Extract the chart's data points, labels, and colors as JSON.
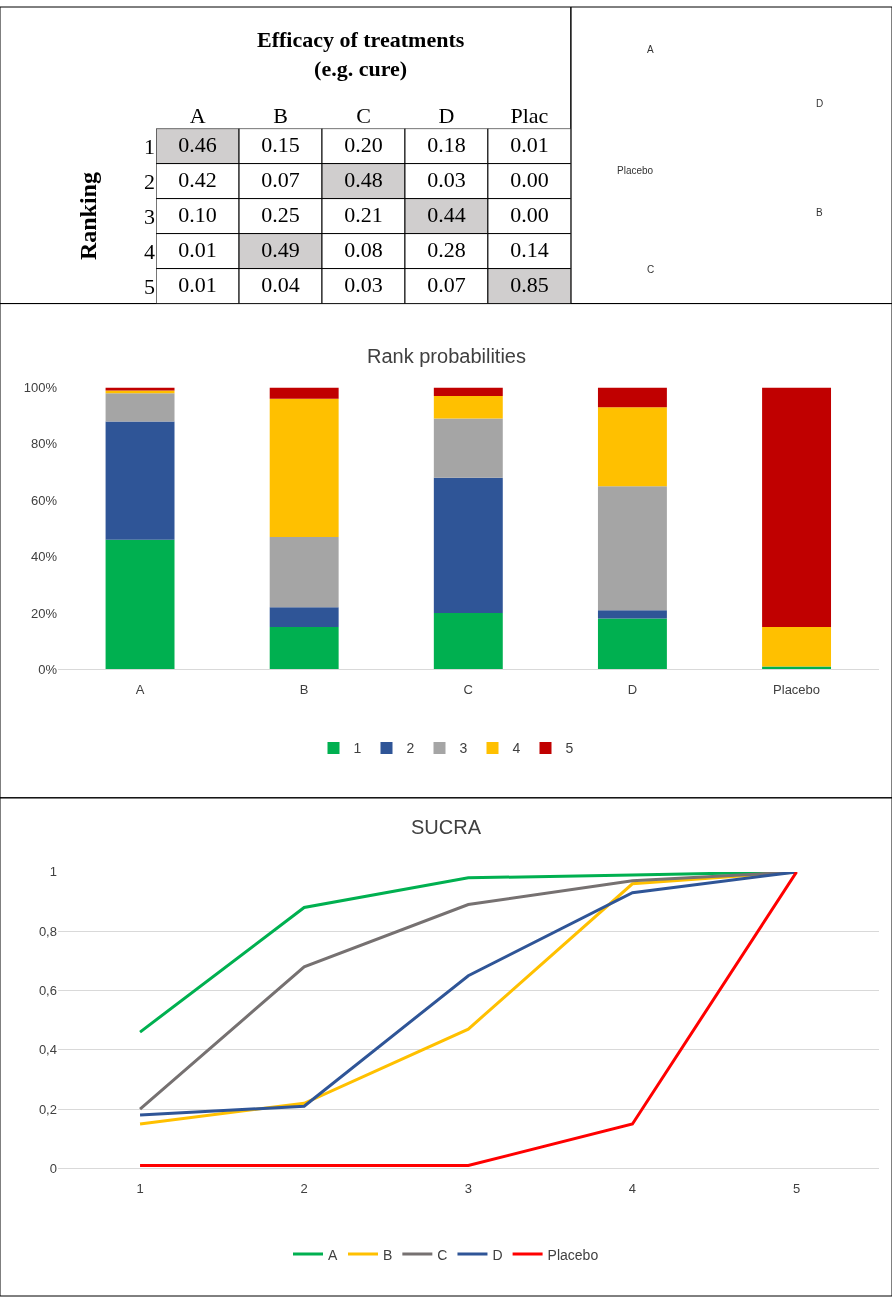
{
  "chart_data": [
    {
      "type": "heatmap",
      "title": "Efficacy of treatments (e.g. cure)",
      "ylabel": "Ranking",
      "categories": [
        "A",
        "B",
        "C",
        "D",
        "Plac"
      ],
      "y_categories": [
        "1",
        "2",
        "3",
        "4",
        "5"
      ],
      "cells": [
        [
          0.46,
          0.15,
          0.2,
          0.18,
          0.01
        ],
        [
          0.42,
          0.07,
          0.48,
          0.03,
          0.0
        ],
        [
          0.1,
          0.25,
          0.21,
          0.44,
          0.0
        ],
        [
          0.01,
          0.49,
          0.08,
          0.28,
          0.14
        ],
        [
          0.01,
          0.04,
          0.03,
          0.07,
          0.85
        ]
      ],
      "cell_labels": [
        [
          "0.46",
          "0.15",
          "0.20",
          "0.18",
          "0.01"
        ],
        [
          "0.42",
          "0.07",
          "0.48",
          "0.03",
          "0.00"
        ],
        [
          "0.10",
          "0.25",
          "0.21",
          "0.44",
          "0.00"
        ],
        [
          "0.01",
          "0.49",
          "0.08",
          "0.28",
          "0.14"
        ],
        [
          "0.01",
          "0.04",
          "0.03",
          "0.07",
          "0.85"
        ]
      ]
    },
    {
      "type": "other",
      "annotations": [
        "A",
        "D",
        "Placebo",
        "B",
        "C"
      ]
    },
    {
      "type": "bar",
      "stacked": true,
      "title": "Rank probabilities",
      "categories": [
        "A",
        "B",
        "C",
        "D",
        "Placebo"
      ],
      "ylim": [
        0,
        100
      ],
      "yticks": [
        {
          "value": 0,
          "label": "0%"
        },
        {
          "value": 20,
          "label": "20%"
        },
        {
          "value": 40,
          "label": "40%"
        },
        {
          "value": 60,
          "label": "60%"
        },
        {
          "value": 80,
          "label": "80%"
        },
        {
          "value": 100,
          "label": "100%"
        }
      ],
      "grid": false,
      "legend": "bottom",
      "series": [
        {
          "name": "1",
          "color": "#00b050",
          "values": [
            46,
            15,
            20,
            18,
            1
          ]
        },
        {
          "name": "2",
          "color": "#2f5597",
          "values": [
            42,
            7,
            48,
            3,
            0
          ]
        },
        {
          "name": "3",
          "color": "#a5a5a5",
          "values": [
            10,
            25,
            21,
            44,
            0
          ]
        },
        {
          "name": "4",
          "color": "#ffc000",
          "values": [
            1,
            49,
            8,
            28,
            14
          ]
        },
        {
          "name": "5",
          "color": "#c00000",
          "values": [
            1,
            4,
            3,
            7,
            85
          ]
        }
      ]
    },
    {
      "type": "line",
      "title": "SUCRA",
      "categories": [
        "1",
        "2",
        "3",
        "4",
        "5"
      ],
      "ylim": [
        0,
        1
      ],
      "yticks": [
        0,
        {
          "value": 0.2,
          "label": "0,2"
        },
        {
          "value": 0.4,
          "label": "0,4"
        },
        {
          "value": 0.6,
          "label": "0,6"
        },
        {
          "value": 0.8,
          "label": "0,8"
        },
        1
      ],
      "grid": "y",
      "legend": "bottom",
      "marker": "none",
      "line_style": "solid",
      "series": [
        {
          "name": "A",
          "color": "#00b050",
          "values": [
            0.46,
            0.88,
            0.98,
            0.99,
            1
          ]
        },
        {
          "name": "B",
          "color": "#ffc000",
          "values": [
            0.15,
            0.22,
            0.47,
            0.96,
            1
          ]
        },
        {
          "name": "C",
          "color": "#767171",
          "values": [
            0.2,
            0.68,
            0.89,
            0.97,
            1
          ]
        },
        {
          "name": "D",
          "color": "#2f5597",
          "values": [
            0.18,
            0.21,
            0.65,
            0.93,
            1
          ]
        },
        {
          "name": "Placebo",
          "color": "#ff0000",
          "values": [
            0.01,
            0.01,
            0.01,
            0.15,
            1
          ]
        }
      ]
    }
  ]
}
